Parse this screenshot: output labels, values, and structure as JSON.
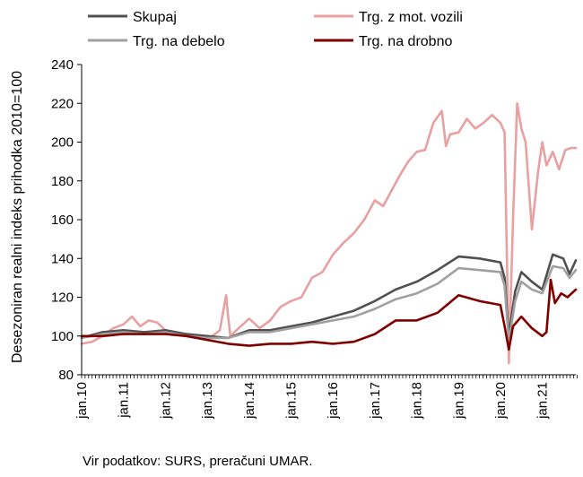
{
  "chart_data": {
    "type": "line",
    "ylabel": "Desezoniran realni indeks prihodka 2010=100",
    "ylim": [
      80,
      240
    ],
    "yticks": [
      80,
      100,
      120,
      140,
      160,
      180,
      200,
      220,
      240
    ],
    "xlim": [
      2010.0,
      2021.8
    ],
    "x_tick_labels": [
      "jan.10",
      "jan.11",
      "jan.12",
      "jan.13",
      "jan.14",
      "jan.15",
      "jan.16",
      "jan.17",
      "jan.18",
      "jan.19",
      "jan.20",
      "jan.21"
    ],
    "x_tick_positions": [
      2010,
      2011,
      2012,
      2013,
      2014,
      2015,
      2016,
      2017,
      2018,
      2019,
      2020,
      2021
    ],
    "legend_position": "top",
    "grid": false,
    "source": "Vir podatkov: SURS, preračuni UMAR.",
    "series": [
      {
        "name": "Trg. z mot. vozili",
        "color": "#e8a0a0",
        "x": [
          2010.0,
          2010.25,
          2010.5,
          2010.75,
          2011.0,
          2011.2,
          2011.4,
          2011.6,
          2011.8,
          2012.0,
          2012.25,
          2012.5,
          2012.75,
          2013.0,
          2013.3,
          2013.45,
          2013.5,
          2013.55,
          2013.75,
          2014.0,
          2014.25,
          2014.5,
          2014.75,
          2015.0,
          2015.25,
          2015.5,
          2015.75,
          2016.0,
          2016.25,
          2016.5,
          2016.75,
          2017.0,
          2017.2,
          2017.4,
          2017.6,
          2017.8,
          2018.0,
          2018.2,
          2018.4,
          2018.6,
          2018.7,
          2018.8,
          2019.0,
          2019.2,
          2019.4,
          2019.6,
          2019.8,
          2020.0,
          2020.1,
          2020.2,
          2020.3,
          2020.4,
          2020.5,
          2020.6,
          2020.75,
          2020.9,
          2021.0,
          2021.1,
          2021.25,
          2021.4,
          2021.55,
          2021.7,
          2021.8
        ],
        "values": [
          96,
          97,
          100,
          104,
          106,
          110,
          105,
          108,
          107,
          103,
          102,
          101,
          100,
          98,
          103,
          121,
          110,
          100,
          104,
          109,
          104,
          108,
          115,
          118,
          120,
          130,
          133,
          142,
          148,
          153,
          160,
          170,
          167,
          175,
          183,
          190,
          195,
          196,
          210,
          216,
          198,
          204,
          205,
          212,
          207,
          210,
          214,
          210,
          205,
          86,
          160,
          220,
          207,
          200,
          155,
          185,
          200,
          188,
          195,
          186,
          196,
          197,
          197
        ]
      },
      {
        "name": "Skupaj",
        "color": "#505050",
        "x": [
          2010.0,
          2010.5,
          2011.0,
          2011.5,
          2012.0,
          2012.5,
          2013.0,
          2013.5,
          2014.0,
          2014.5,
          2015.0,
          2015.5,
          2016.0,
          2016.5,
          2017.0,
          2017.5,
          2018.0,
          2018.5,
          2019.0,
          2019.5,
          2020.0,
          2020.1,
          2020.2,
          2020.35,
          2020.5,
          2020.75,
          2021.0,
          2021.25,
          2021.5,
          2021.65,
          2021.8
        ],
        "values": [
          99,
          102,
          103,
          102,
          103,
          101,
          100,
          99,
          103,
          103,
          105,
          107,
          110,
          113,
          118,
          124,
          128,
          134,
          141,
          140,
          138,
          130,
          100,
          123,
          133,
          128,
          124,
          142,
          140,
          132,
          139
        ]
      },
      {
        "name": "Trg. na debelo",
        "color": "#a0a0a0",
        "x": [
          2010.0,
          2010.5,
          2011.0,
          2011.5,
          2012.0,
          2012.5,
          2013.0,
          2013.5,
          2014.0,
          2014.5,
          2015.0,
          2015.5,
          2016.0,
          2016.5,
          2017.0,
          2017.5,
          2018.0,
          2018.5,
          2019.0,
          2019.5,
          2020.0,
          2020.1,
          2020.2,
          2020.35,
          2020.5,
          2020.75,
          2021.0,
          2021.25,
          2021.5,
          2021.65,
          2021.8
        ],
        "values": [
          99,
          101,
          102,
          101,
          102,
          100,
          99,
          99,
          102,
          102,
          104,
          106,
          108,
          110,
          114,
          119,
          122,
          127,
          135,
          134,
          133,
          126,
          97,
          118,
          128,
          124,
          122,
          136,
          135,
          130,
          134
        ]
      },
      {
        "name": "Trg. na drobno",
        "color": "#800000",
        "x": [
          2010.0,
          2010.5,
          2011.0,
          2011.5,
          2012.0,
          2012.5,
          2013.0,
          2013.5,
          2014.0,
          2014.5,
          2015.0,
          2015.5,
          2016.0,
          2016.5,
          2017.0,
          2017.5,
          2018.0,
          2018.5,
          2019.0,
          2019.5,
          2020.0,
          2020.1,
          2020.2,
          2020.3,
          2020.5,
          2020.75,
          2021.0,
          2021.1,
          2021.2,
          2021.3,
          2021.45,
          2021.6,
          2021.8
        ],
        "values": [
          100,
          100,
          101,
          101,
          101,
          100,
          98,
          96,
          95,
          96,
          96,
          97,
          96,
          97,
          101,
          108,
          108,
          112,
          121,
          118,
          116,
          105,
          93,
          105,
          110,
          104,
          100,
          102,
          129,
          117,
          122,
          120,
          124
        ]
      }
    ]
  }
}
